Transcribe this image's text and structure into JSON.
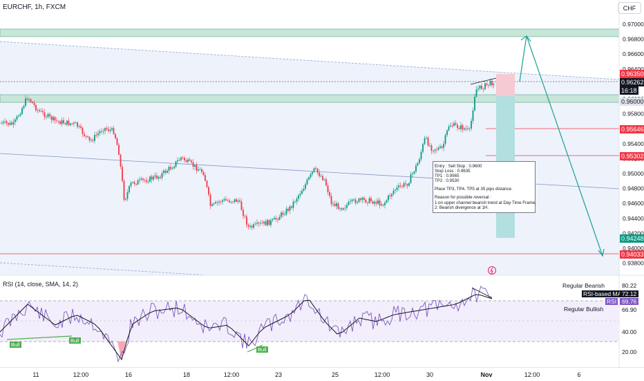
{
  "header": {
    "symbol_line": "EURCHF, 1h, FXCM",
    "currency_button": "CHF"
  },
  "price_axis": {
    "labels": [
      "0.97000",
      "0.96800",
      "0.96600",
      "0.96400",
      "0.96200",
      "0.96000",
      "0.95800",
      "0.95600",
      "0.95400",
      "0.95200",
      "0.95000",
      "0.94800",
      "0.94600",
      "0.94400",
      "0.94200",
      "0.94000",
      "0.93800"
    ]
  },
  "price_tags": {
    "level_96350": "0.96350",
    "current_price": "0.96262",
    "countdown": "16:18",
    "level_96000": "0.96000",
    "level_95646": "0.95646",
    "level_95302": "0.95302",
    "level_94248": "0.94248",
    "level_94033": "0.94033"
  },
  "annotation": {
    "entry": "Entry : Sell Stop : 0.9600",
    "stop_loss": "Stop Loss : 0.9635",
    "tp1": "TP1 : 0.9565",
    "tp2": "TP2 : 0.9530",
    "place": "Place TP3, TP4, TP5 at 35 pips distance.",
    "reason_title": "Reason for possible reversal :",
    "reason1": "1:on upper channel bearish trend at Day Time Frame.",
    "reason2": "2: Bearish divergence at 1H."
  },
  "rsi": {
    "title": "RSI (14, close, SMA, 14, 2)",
    "axis_labels": [
      "80.22",
      "66.90",
      "40.00",
      "20.00"
    ],
    "regular_bearish_label": "Regular Bearish",
    "regular_bullish_label": "Regular Bullish",
    "rsi_ma_label": "RSI-based MA",
    "rsi_ma_value": "72.12",
    "rsi_label": "RSI",
    "rsi_value": "69.76",
    "bull_tag": "Bull"
  },
  "time_axis": {
    "labels": [
      "11",
      "12:00",
      "16",
      "18",
      "12:00",
      "23",
      "25",
      "12:00",
      "30",
      "Nov",
      "12:00",
      "6"
    ]
  },
  "colors": {
    "bull_candle": "#089981",
    "bear_candle": "#f23645",
    "zone_green": "#c8e6d8",
    "channel_fill": "#eef2fb",
    "red_line": "#f23645",
    "arrow": "#26a69a",
    "rsi_line": "#7e57c2"
  }
}
